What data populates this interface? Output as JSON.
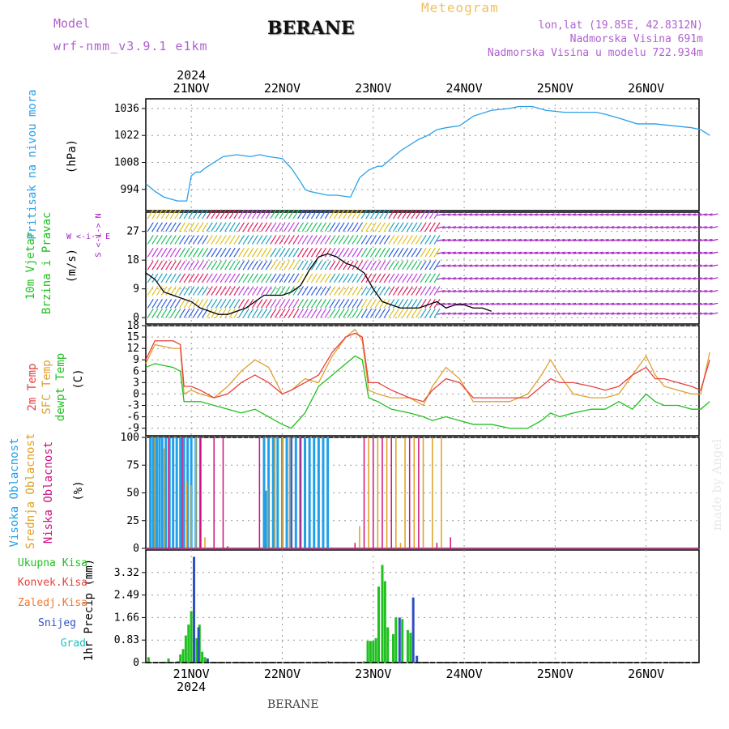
{
  "header": {
    "model_label": "Model",
    "model_value": "wrf-nmm_v3.9.1 e1km",
    "title": "BERANE",
    "meteogram": "Meteogram",
    "lonlat": "lon,lat (19.85E, 42.8312N)",
    "altitude": "Nadmorska Visina 691m",
    "model_altitude": "Nadmorska Visina u modelu 722.934m",
    "made_by": "made by Angel",
    "footer": "BERANE"
  },
  "time_axis": {
    "year_top": "2024",
    "year_bottom": "2024",
    "days": [
      "21NOV",
      "22NOV",
      "23NOV",
      "24NOV",
      "25NOV",
      "26NOV"
    ]
  },
  "colors": {
    "pressure": "#2aa0e8",
    "temp2m": "#e84040",
    "sfc": "#e0a030",
    "dew": "#20c020",
    "high_cloud": "#20a0e8",
    "mid_cloud": "#e0a020",
    "low_cloud": "#d01080",
    "total": "#20c020",
    "snow": "#3050c0",
    "wind_barb": "#a020c0"
  },
  "chart_data": [
    {
      "type": "line",
      "panel": "pressure",
      "ylabel_main": "Pritisak na nivou mora",
      "ylabel_unit": "(hPa)",
      "yticks": [
        994,
        1008,
        1022,
        1036
      ],
      "ylim": [
        983,
        1041
      ],
      "x": [
        0,
        0.1,
        0.2,
        0.35,
        0.45,
        0.5,
        0.55,
        0.6,
        0.65,
        0.75,
        0.85,
        1.0,
        1.15,
        1.25,
        1.35,
        1.5,
        1.6,
        1.7,
        1.75,
        1.8,
        1.9,
        2.0,
        2.1,
        2.25,
        2.35,
        2.45,
        2.5,
        2.55,
        2.6,
        2.8,
        3.0,
        3.1,
        3.2,
        3.3,
        3.45,
        3.6,
        3.8,
        4.0,
        4.1,
        4.25,
        4.4,
        4.6,
        4.8,
        4.95,
        5.05,
        5.2,
        5.4,
        5.6,
        5.8,
        6.0,
        6.1,
        6.2
      ],
      "series": [
        {
          "name": "",
          "values": [
            997,
            993,
            990,
            988,
            988,
            1001,
            1003,
            1003,
            1005,
            1008,
            1011,
            1012,
            1011,
            1012,
            1011,
            1010,
            1005,
            998,
            994,
            993,
            992,
            991,
            991,
            990,
            1000,
            1004,
            1005,
            1006,
            1006,
            1014,
            1020,
            1022,
            1025,
            1026,
            1027,
            1032,
            1035,
            1036,
            1037,
            1037,
            1035,
            1034,
            1034,
            1034,
            1033,
            1031,
            1028,
            1028,
            1027,
            1026,
            1025,
            1022
          ]
        }
      ]
    },
    {
      "type": "line",
      "panel": "wind",
      "ylabel_main": "10m Vjetar",
      "ylabel_sub": "Brzina i Pravac",
      "ylabel_unit": "(m/s)",
      "compass": "W <-i-> E",
      "compass_vertical": "S <-i-> N",
      "yticks": [
        0,
        9,
        18,
        27
      ],
      "ylim": [
        -2,
        33
      ],
      "barb_levels": [
        1,
        4,
        8,
        12,
        16,
        20,
        24,
        28,
        32
      ],
      "x": [
        0,
        0.1,
        0.2,
        0.3,
        0.4,
        0.5,
        0.6,
        0.7,
        0.8,
        0.9,
        1.0,
        1.1,
        1.2,
        1.3,
        1.4,
        1.5,
        1.6,
        1.7,
        1.8,
        1.9,
        2.0,
        2.1,
        2.2,
        2.3,
        2.4,
        2.5,
        2.6,
        2.7,
        2.8,
        2.9,
        3.0,
        3.1,
        3.2,
        3.3,
        3.4,
        3.5,
        3.6,
        3.7,
        3.8
      ],
      "series": [
        {
          "name": "",
          "values": [
            14,
            12,
            8,
            7,
            6,
            5,
            3,
            2,
            1,
            1,
            2,
            3,
            5,
            7,
            7,
            7,
            8,
            10,
            15,
            19,
            20,
            19,
            17,
            16,
            14,
            9,
            5,
            4,
            3,
            3,
            3,
            4,
            5,
            3,
            4,
            4,
            3,
            3,
            2
          ]
        }
      ]
    },
    {
      "type": "line",
      "panel": "temperature",
      "ylabel_2m": "2m Temp",
      "ylabel_sfc": "SFC Temp",
      "ylabel_dew": "dewpt Temp",
      "ylabel_unit": "(C)",
      "yticks": [
        -9,
        -6,
        -3,
        0,
        3,
        6,
        9,
        12,
        15,
        18
      ],
      "ylim": [
        -11,
        18
      ],
      "x": [
        0,
        0.1,
        0.3,
        0.38,
        0.42,
        0.5,
        0.6,
        0.75,
        0.9,
        1.05,
        1.2,
        1.35,
        1.5,
        1.6,
        1.75,
        1.9,
        2.05,
        2.2,
        2.3,
        2.38,
        2.45,
        2.55,
        2.7,
        2.9,
        3.05,
        3.15,
        3.3,
        3.45,
        3.6,
        3.8,
        4.0,
        4.2,
        4.35,
        4.45,
        4.55,
        4.7,
        4.9,
        5.05,
        5.2,
        5.35,
        5.5,
        5.6,
        5.7,
        5.85,
        6.0,
        6.1,
        6.2
      ],
      "series": [
        {
          "name": "2m Temp",
          "values": [
            9,
            14,
            14,
            13,
            2,
            2,
            1,
            -1,
            0,
            3,
            5,
            3,
            0,
            1,
            3,
            5,
            11,
            15,
            16,
            15,
            3,
            3,
            1,
            -1,
            -2,
            1,
            4,
            3,
            -1,
            -1,
            -1,
            -1,
            2,
            4,
            3,
            3,
            2,
            1,
            2,
            5,
            7,
            4,
            4,
            3,
            2,
            1,
            9
          ]
        },
        {
          "name": "SFC Temp",
          "values": [
            8,
            13,
            12,
            12,
            0,
            1,
            0,
            -1,
            2,
            6,
            9,
            7,
            0,
            1,
            4,
            3,
            10,
            15,
            17,
            14,
            1,
            0,
            -1,
            -1,
            -3,
            2,
            7,
            4,
            -2,
            -2,
            -2,
            0,
            5,
            9,
            5,
            0,
            -1,
            -1,
            0,
            5,
            10,
            5,
            2,
            1,
            0,
            0,
            11
          ]
        },
        {
          "name": "dewpt Temp",
          "values": [
            7,
            8,
            7,
            6,
            -2,
            -2,
            -2,
            -3,
            -4,
            -5,
            -4,
            -6,
            -8,
            -9,
            -5,
            2,
            5,
            8,
            10,
            9,
            -1,
            -2,
            -4,
            -5,
            -6,
            -7,
            -6,
            -7,
            -8,
            -8,
            -9,
            -9,
            -7,
            -5,
            -6,
            -5,
            -4,
            -4,
            -2,
            -4,
            0,
            -2,
            -3,
            -3,
            -4,
            -4,
            -2
          ]
        }
      ]
    },
    {
      "type": "bar",
      "panel": "clouds",
      "ylabel_high": "Visoka Oblacnost",
      "ylabel_mid": "Srednja Oblacnost",
      "ylabel_low": "Niska Oblacnost",
      "ylabel_unit": "(%)",
      "yticks": [
        0,
        25,
        50,
        75,
        100
      ],
      "ylim": [
        0,
        100
      ],
      "high_bars": [
        [
          0.05,
          100
        ],
        [
          0.08,
          100
        ],
        [
          0.12,
          100
        ],
        [
          0.15,
          100
        ],
        [
          0.18,
          100
        ],
        [
          0.22,
          100
        ],
        [
          0.26,
          100
        ],
        [
          0.3,
          100
        ],
        [
          0.34,
          100
        ],
        [
          0.38,
          100
        ],
        [
          0.42,
          100
        ],
        [
          0.46,
          100
        ],
        [
          0.5,
          100
        ],
        [
          0.55,
          100
        ],
        [
          0.6,
          100
        ],
        [
          1.3,
          100
        ],
        [
          1.35,
          100
        ],
        [
          1.4,
          100
        ],
        [
          1.45,
          100
        ],
        [
          1.5,
          100
        ],
        [
          1.55,
          100
        ],
        [
          1.6,
          100
        ],
        [
          1.65,
          100
        ],
        [
          1.7,
          100
        ],
        [
          1.75,
          100
        ],
        [
          1.8,
          100
        ],
        [
          1.85,
          100
        ],
        [
          1.9,
          100
        ],
        [
          1.95,
          100
        ],
        [
          2.0,
          100
        ],
        [
          1.32,
          52
        ]
      ],
      "mid_bars": [
        [
          0.1,
          100
        ],
        [
          0.2,
          90
        ],
        [
          0.45,
          60
        ],
        [
          0.5,
          57
        ],
        [
          0.55,
          100
        ],
        [
          0.65,
          10
        ],
        [
          1.34,
          55
        ],
        [
          1.42,
          100
        ],
        [
          1.5,
          100
        ],
        [
          1.58,
          100
        ],
        [
          2.35,
          20
        ],
        [
          2.45,
          100
        ],
        [
          2.55,
          100
        ],
        [
          2.65,
          100
        ],
        [
          2.75,
          100
        ],
        [
          2.85,
          100
        ],
        [
          2.95,
          100
        ],
        [
          3.05,
          100
        ],
        [
          3.15,
          100
        ],
        [
          3.25,
          100
        ],
        [
          2.8,
          5
        ]
      ],
      "low_bars": [
        [
          0.25,
          100
        ],
        [
          0.4,
          100
        ],
        [
          0.6,
          100
        ],
        [
          0.75,
          100
        ],
        [
          0.85,
          100
        ],
        [
          1.25,
          100
        ],
        [
          1.6,
          100
        ],
        [
          1.7,
          100
        ],
        [
          2.4,
          100
        ],
        [
          2.5,
          100
        ],
        [
          2.6,
          100
        ],
        [
          2.7,
          100
        ],
        [
          2.9,
          100
        ],
        [
          3.0,
          100
        ],
        [
          3.2,
          5
        ],
        [
          3.35,
          10
        ],
        [
          2.3,
          5
        ],
        [
          0.9,
          2
        ]
      ]
    },
    {
      "type": "bar",
      "panel": "precipitation",
      "ylabel_unit": "1hr Precip (mm)",
      "legend": [
        "Ukupna Kisa",
        "Konvek.Kisa",
        "Zaledj.Kisa",
        "Snijeg",
        "Grad"
      ],
      "yticks": [
        0,
        0.83,
        1.66,
        2.49,
        3.32
      ],
      "ylim": [
        0,
        4.15
      ],
      "total_bars": [
        [
          0.03,
          0.2
        ],
        [
          0.25,
          0.15
        ],
        [
          0.35,
          0.05
        ],
        [
          0.38,
          0.3
        ],
        [
          0.41,
          0.5
        ],
        [
          0.44,
          1.0
        ],
        [
          0.47,
          1.4
        ],
        [
          0.5,
          1.9
        ],
        [
          0.56,
          0.9
        ],
        [
          0.59,
          1.4
        ],
        [
          0.62,
          0.4
        ],
        [
          0.65,
          0.2
        ],
        [
          2.0,
          0.05
        ],
        [
          2.4,
          0.05
        ],
        [
          2.44,
          0.8
        ],
        [
          2.47,
          0.8
        ],
        [
          2.5,
          0.8
        ],
        [
          2.53,
          0.9
        ],
        [
          2.56,
          2.8
        ],
        [
          2.6,
          3.6
        ],
        [
          2.63,
          3.0
        ],
        [
          2.66,
          1.3
        ],
        [
          2.72,
          1.05
        ],
        [
          2.75,
          1.66
        ],
        [
          2.82,
          1.6
        ],
        [
          2.88,
          1.2
        ],
        [
          2.91,
          1.1
        ]
      ],
      "snow_bars": [
        [
          0.53,
          3.9
        ],
        [
          0.58,
          1.3
        ],
        [
          0.68,
          0.15
        ],
        [
          2.79,
          1.66
        ],
        [
          2.94,
          2.4
        ],
        [
          2.98,
          0.25
        ]
      ],
      "xlabel": "BERANE"
    }
  ]
}
